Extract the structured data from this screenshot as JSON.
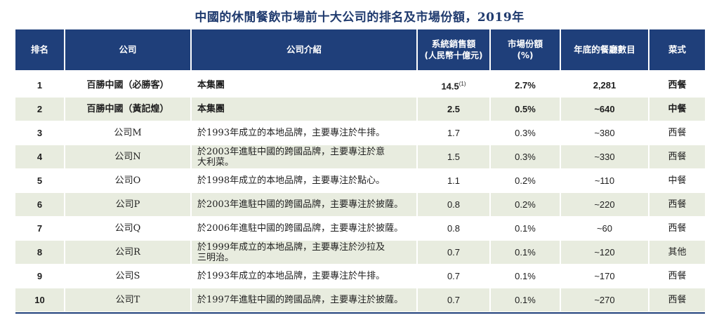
{
  "title": "中國的休閒餐飲市場前十大公司的排名及市場份額，2019年",
  "headers": {
    "rank": "排名",
    "company": "公司",
    "intro": "公司介紹",
    "sales_line1": "系統銷售額",
    "sales_line2": "(人民幣十億元)",
    "share_line1": "市場份額",
    "share_line2": "(%)",
    "stores": "年底的餐廳數目",
    "cuisine": "菜式"
  },
  "rows": [
    {
      "rank": "1",
      "company": "百勝中國（必勝客）",
      "intro": "本集團",
      "sales": "14.5",
      "note": "(1)",
      "share": "2.7%",
      "stores": "2,281",
      "cuisine": "西餐"
    },
    {
      "rank": "2",
      "company": "百勝中國（黃記煌）",
      "intro": "本集團",
      "sales": "2.5",
      "note": "",
      "share": "0.5%",
      "stores": "~640",
      "cuisine": "中餐"
    },
    {
      "rank": "3",
      "company": "公司M",
      "intro": "於1993年成立的本地品牌，主要專注於牛排。",
      "sales": "1.7",
      "note": "",
      "share": "0.3%",
      "stores": "~380",
      "cuisine": "西餐"
    },
    {
      "rank": "4",
      "company": "公司N",
      "intro": "於2003年進駐中國的跨國品牌，主要專注於意大利菜。",
      "sales": "1.5",
      "note": "",
      "share": "0.3%",
      "stores": "~330",
      "cuisine": "西餐"
    },
    {
      "rank": "5",
      "company": "公司O",
      "intro": "於1998年成立的本地品牌，主要專注於點心。",
      "sales": "1.1",
      "note": "",
      "share": "0.2%",
      "stores": "~110",
      "cuisine": "中餐"
    },
    {
      "rank": "6",
      "company": "公司P",
      "intro": "於2003年進駐中國的跨國品牌，主要專注於披薩。",
      "sales": "0.8",
      "note": "",
      "share": "0.2%",
      "stores": "~220",
      "cuisine": "西餐"
    },
    {
      "rank": "7",
      "company": "公司Q",
      "intro": "於2006年進駐中國的跨國品牌，主要專注於披薩。",
      "sales": "0.8",
      "note": "",
      "share": "0.1%",
      "stores": "~60",
      "cuisine": "西餐"
    },
    {
      "rank": "8",
      "company": "公司R",
      "intro": "於1999年成立的本地品牌，主要專注於沙拉及三明治。",
      "sales": "0.7",
      "note": "",
      "share": "0.1%",
      "stores": "~120",
      "cuisine": "其他"
    },
    {
      "rank": "9",
      "company": "公司S",
      "intro": "於1993年成立的本地品牌，主要專注於牛排。",
      "sales": "0.7",
      "note": "",
      "share": "0.1%",
      "stores": "~170",
      "cuisine": "西餐"
    },
    {
      "rank": "10",
      "company": "公司T",
      "intro": "於1997年進駐中國的跨國品牌，主要專注於披薩。",
      "sales": "0.7",
      "note": "",
      "share": "0.1%",
      "stores": "~270",
      "cuisine": "西餐"
    }
  ]
}
